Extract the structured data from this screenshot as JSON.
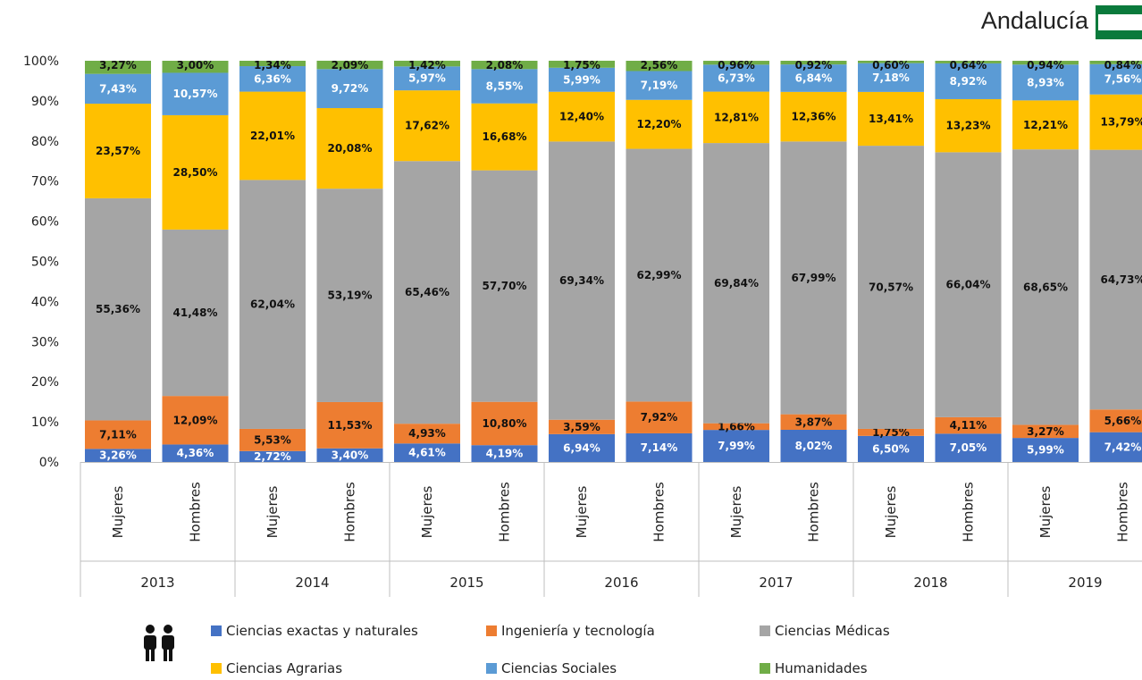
{
  "region": "Andalucía",
  "colors": {
    "exactas": "#4472C4",
    "ingenieria": "#ED7D31",
    "medicas": "#A5A5A5",
    "agrarias": "#FFC000",
    "sociales": "#5B9BD5",
    "humanidades": "#70AD47"
  },
  "chart_data": {
    "type": "bar",
    "stacked": true,
    "percent": true,
    "title": "Andalucía",
    "ylim": [
      0,
      100
    ],
    "yticks": [
      "0%",
      "10%",
      "20%",
      "30%",
      "40%",
      "50%",
      "60%",
      "70%",
      "80%",
      "90%",
      "100%"
    ],
    "years": [
      "2013",
      "2014",
      "2015",
      "2016",
      "2017",
      "2018",
      "2019"
    ],
    "categories": [
      "Mujeres",
      "Hombres",
      "Mujeres",
      "Hombres",
      "Mujeres",
      "Hombres",
      "Mujeres",
      "Hombres",
      "Mujeres",
      "Hombres",
      "Mujeres",
      "Hombres",
      "Mujeres",
      "Hombres"
    ],
    "series": [
      {
        "name": "Ciencias exactas y naturales",
        "key": "exactas",
        "values": [
          3.26,
          4.36,
          2.72,
          3.4,
          4.61,
          4.19,
          6.94,
          7.14,
          7.99,
          8.02,
          6.5,
          7.05,
          5.99,
          7.42
        ],
        "labels": [
          "3,26%",
          "4,36%",
          "2,72%",
          "3,40%",
          "4,61%",
          "4,19%",
          "6,94%",
          "7,14%",
          "7,99%",
          "8,02%",
          "6,50%",
          "7,05%",
          "5,99%",
          "7,42%"
        ]
      },
      {
        "name": "Ingeniería y tecnología",
        "key": "ingenieria",
        "values": [
          7.11,
          12.09,
          5.53,
          11.53,
          4.93,
          10.8,
          3.59,
          7.92,
          1.66,
          3.87,
          1.75,
          4.11,
          3.27,
          5.66
        ],
        "labels": [
          "7,11%",
          "12,09%",
          "5,53%",
          "11,53%",
          "4,93%",
          "10,80%",
          "3,59%",
          "7,92%",
          "1,66%",
          "3,87%",
          "1,75%",
          "4,11%",
          "3,27%",
          "5,66%"
        ]
      },
      {
        "name": "Ciencias Médicas",
        "key": "medicas",
        "values": [
          55.36,
          41.48,
          62.04,
          53.19,
          65.46,
          57.7,
          69.34,
          62.99,
          69.84,
          67.99,
          70.57,
          66.04,
          68.65,
          64.73
        ],
        "labels": [
          "55,36%",
          "41,48%",
          "62,04%",
          "53,19%",
          "65,46%",
          "57,70%",
          "69,34%",
          "62,99%",
          "69,84%",
          "67,99%",
          "70,57%",
          "66,04%",
          "68,65%",
          "64,73%"
        ]
      },
      {
        "name": "Ciencias Agrarias",
        "key": "agrarias",
        "values": [
          23.57,
          28.5,
          22.01,
          20.08,
          17.62,
          16.68,
          12.4,
          12.2,
          12.81,
          12.36,
          13.41,
          13.23,
          12.21,
          13.79
        ],
        "labels": [
          "23,57%",
          "28,50%",
          "22,01%",
          "20,08%",
          "17,62%",
          "16,68%",
          "12,40%",
          "12,20%",
          "12,81%",
          "12,36%",
          "13,41%",
          "13,23%",
          "12,21%",
          "13,79%"
        ]
      },
      {
        "name": "Ciencias Sociales",
        "key": "sociales",
        "values": [
          7.43,
          10.57,
          6.36,
          9.72,
          5.97,
          8.55,
          5.99,
          7.19,
          6.73,
          6.84,
          7.18,
          8.92,
          8.93,
          7.56
        ],
        "labels": [
          "7,43%",
          "10,57%",
          "6,36%",
          "9,72%",
          "5,97%",
          "8,55%",
          "5,99%",
          "7,19%",
          "6,73%",
          "6,84%",
          "7,18%",
          "8,92%",
          "8,93%",
          "7,56%"
        ]
      },
      {
        "name": "Humanidades",
        "key": "humanidades",
        "values": [
          3.27,
          3.0,
          1.34,
          2.09,
          1.42,
          2.08,
          1.75,
          2.56,
          0.96,
          0.92,
          0.6,
          0.64,
          0.94,
          0.84
        ],
        "labels": [
          "3,27%",
          "3,00%",
          "1,34%",
          "2,09%",
          "1,42%",
          "2,08%",
          "1,75%",
          "2,56%",
          "0,96%",
          "0,92%",
          "0,60%",
          "0,64%",
          "0,94%",
          "0,84%"
        ]
      }
    ],
    "legend": {
      "position": "bottom",
      "items": [
        "Ciencias exactas y naturales",
        "Ingeniería y tecnología",
        "Ciencias Médicas",
        "Ciencias Agrarias",
        "Ciencias Sociales",
        "Humanidades"
      ]
    },
    "legend_icon": "people-icon",
    "grid": false
  }
}
